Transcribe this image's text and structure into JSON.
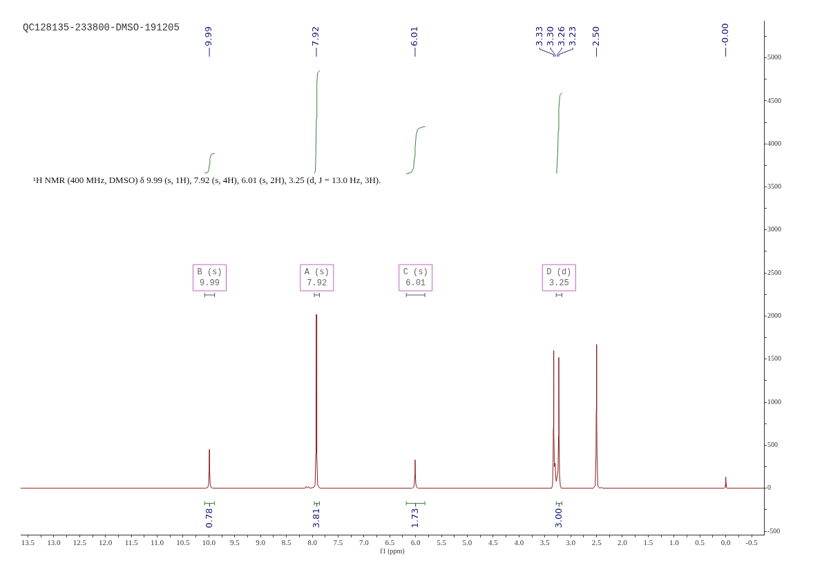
{
  "chart_data": {
    "type": "line",
    "title": "QC128135-233800-DMSO-191205",
    "xlabel": "f1 (ppm)",
    "marker": "none",
    "xlim": [
      13.64,
      -0.74
    ],
    "xticks": [
      13.5,
      {
        "value": 13.25,
        "label": null
      },
      {
        "value": 13,
        "label": "13.0"
      },
      {
        "value": 12.75,
        "label": null
      },
      12.5,
      {
        "value": 12.25,
        "label": null
      },
      {
        "value": 12,
        "label": "12.0"
      },
      {
        "value": 11.75,
        "label": null
      },
      11.5,
      {
        "value": 11.25,
        "label": null
      },
      {
        "value": 11,
        "label": "11.0"
      },
      {
        "value": 10.75,
        "label": null
      },
      10.5,
      {
        "value": 10.25,
        "label": null
      },
      {
        "value": 10,
        "label": "10.0"
      },
      {
        "value": 9.75,
        "label": null
      },
      9.5,
      {
        "value": 9.25,
        "label": null
      },
      {
        "value": 9,
        "label": "9.0"
      },
      {
        "value": 8.75,
        "label": null
      },
      8.5,
      {
        "value": 8.25,
        "label": null
      },
      {
        "value": 8,
        "label": "8.0"
      },
      {
        "value": 7.75,
        "label": null
      },
      7.5,
      {
        "value": 7.25,
        "label": null
      },
      {
        "value": 7,
        "label": "7.0"
      },
      {
        "value": 6.75,
        "label": null
      },
      6.5,
      {
        "value": 6.25,
        "label": null
      },
      {
        "value": 6,
        "label": "6.0"
      },
      {
        "value": 5.75,
        "label": null
      },
      5.5,
      {
        "value": 5.25,
        "label": null
      },
      {
        "value": 5,
        "label": "5.0"
      },
      {
        "value": 4.75,
        "label": null
      },
      4.5,
      {
        "value": 4.25,
        "label": null
      },
      {
        "value": 4,
        "label": "4.0"
      },
      {
        "value": 3.75,
        "label": null
      },
      3.5,
      {
        "value": 3.25,
        "label": null
      },
      {
        "value": 3,
        "label": "3.0"
      },
      {
        "value": 2.75,
        "label": null
      },
      2.5,
      {
        "value": 2.25,
        "label": null
      },
      {
        "value": 2,
        "label": "2.0"
      },
      {
        "value": 1.75,
        "label": null
      },
      1.5,
      {
        "value": 1.25,
        "label": null
      },
      {
        "value": 1,
        "label": "1.0"
      },
      {
        "value": 0.75,
        "label": null
      },
      0.5,
      {
        "value": 0.25,
        "label": null
      },
      {
        "value": 0,
        "label": "0.0"
      },
      {
        "value": -0.25,
        "label": null
      },
      -0.5
    ],
    "ylim": [
      -540,
      5430
    ],
    "yticks": [
      -500,
      {
        "value": -250,
        "label": null
      },
      0,
      {
        "value": 250,
        "label": null
      },
      500,
      {
        "value": 750,
        "label": null
      },
      1000,
      {
        "value": 1250,
        "label": null
      },
      1500,
      {
        "value": 1750,
        "label": null
      },
      2000,
      {
        "value": 2250,
        "label": null
      },
      2500,
      {
        "value": 2750,
        "label": null
      },
      3000,
      {
        "value": 3250,
        "label": null
      },
      3500,
      {
        "value": 3750,
        "label": null
      },
      4000,
      {
        "value": 4250,
        "label": null
      },
      4500,
      {
        "value": 4750,
        "label": null
      },
      5000,
      {
        "value": 5250,
        "label": null
      }
    ],
    "series": [
      {
        "color": "#8b1a1a",
        "x": [
          13.64,
          10.06,
          10.02,
          10.005,
          9.995,
          9.99,
          9.985,
          9.975,
          9.96,
          9.92,
          8.14,
          8.12,
          8.1,
          8.07,
          8.05,
          7.97,
          7.945,
          7.93,
          7.925,
          7.92,
          7.915,
          7.91,
          7.895,
          7.87,
          7.84,
          6.07,
          6.04,
          6.025,
          6.015,
          6.01,
          6.005,
          5.995,
          5.98,
          5.95,
          3.37,
          3.35,
          3.34,
          3.335,
          3.33,
          3.325,
          3.315,
          3.3,
          3.29,
          3.28,
          3.26,
          3.245,
          3.235,
          3.23,
          3.225,
          3.215,
          3.2,
          3.18,
          2.56,
          2.525,
          2.51,
          2.505,
          2.5,
          2.495,
          2.49,
          2.475,
          2.44,
          2.4,
          2.38,
          0.03,
          0.01,
          0.005,
          0,
          -0.005,
          -0.01,
          -0.03,
          -0.74
        ],
        "values": [
          0,
          0,
          10,
          50,
          200,
          450,
          200,
          50,
          10,
          0,
          0,
          20,
          0,
          20,
          0,
          10,
          40,
          400,
          1000,
          2020,
          1000,
          400,
          40,
          10,
          0,
          0,
          10,
          50,
          160,
          330,
          160,
          50,
          10,
          0,
          0,
          40,
          300,
          700,
          1600,
          700,
          250,
          290,
          150,
          80,
          140,
          200,
          600,
          1520,
          600,
          150,
          30,
          0,
          0,
          30,
          400,
          900,
          1670,
          900,
          400,
          30,
          0,
          10,
          0,
          0,
          10,
          50,
          130,
          50,
          10,
          0,
          0
        ]
      },
      {
        "color": "#3a7d3a",
        "x": [
          10.08,
          10.02,
          10.0,
          9.99,
          9.98,
          9.95,
          9.89
        ],
        "values": [
          3660,
          3670,
          3700,
          3760,
          3830,
          3880,
          3890
        ]
      },
      {
        "color": "#3a7d3a",
        "x": [
          7.96,
          7.94,
          7.93,
          7.92,
          7.91,
          7.9,
          7.86
        ],
        "values": [
          3660,
          3680,
          3900,
          4300,
          4700,
          4820,
          4850
        ]
      },
      {
        "color": "#3a7d3a",
        "x": [
          6.18,
          6.08,
          6.04,
          6.02,
          6.01,
          5.99,
          5.96,
          5.9,
          5.82
        ],
        "values": [
          3650,
          3670,
          3720,
          3850,
          3950,
          4100,
          4170,
          4190,
          4200
        ]
      },
      {
        "color": "#3a7d3a",
        "x": [
          3.28,
          3.27,
          3.25,
          3.24,
          3.23,
          3.21,
          3.17
        ],
        "values": [
          3660,
          3680,
          3900,
          4150,
          4400,
          4560,
          4590
        ]
      }
    ],
    "annotations": [
      "¹H NMR (400 MHz, DMSO) δ 9.99 (s, 1H), 7.92 (s, 4H), 6.01 (s, 2H), 3.25 (d, J = 13.0 Hz, 3H).",
      {
        "text": "9.99",
        "x": 9.99
      },
      {
        "text": "7.92",
        "x": 7.92
      },
      {
        "text": "6.01",
        "x": 6.01
      },
      {
        "text": "3.33",
        "x": 3.33
      },
      {
        "text": "3.30",
        "x": 3.3
      },
      {
        "text": "3.26",
        "x": 3.26
      },
      {
        "text": "3.23",
        "x": 3.23
      },
      {
        "text": "2.50",
        "x": 2.5
      },
      {
        "text": "-0.00",
        "x": 0
      },
      "B (s) 9.99",
      "A (s) 7.92",
      "C (s) 6.01",
      "D (d) 3.25",
      "0.78",
      "3.81",
      "1.73",
      "3.00"
    ]
  }
}
